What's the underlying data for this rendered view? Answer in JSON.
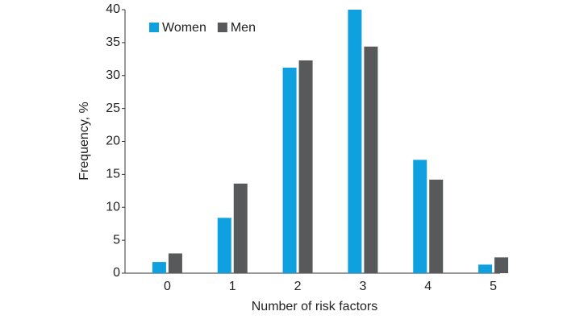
{
  "chart_data": {
    "type": "bar",
    "x_label": "Number of risk factors",
    "y_label": "Frequency, %",
    "categories": [
      "0",
      "1",
      "2",
      "3",
      "4",
      "5"
    ],
    "series": [
      {
        "name": "Women",
        "color": "#0ea0df",
        "values": [
          1.7,
          8.4,
          31.2,
          40,
          17.2,
          1.3
        ]
      },
      {
        "name": "Men",
        "color": "#58595b",
        "values": [
          3.0,
          13.6,
          32.3,
          34.4,
          14.2,
          2.4
        ]
      }
    ],
    "ylim": [
      0,
      40
    ],
    "yticks": [
      0,
      5,
      10,
      15,
      20,
      25,
      30,
      35,
      40
    ],
    "grid": false,
    "legend": "top-left"
  }
}
